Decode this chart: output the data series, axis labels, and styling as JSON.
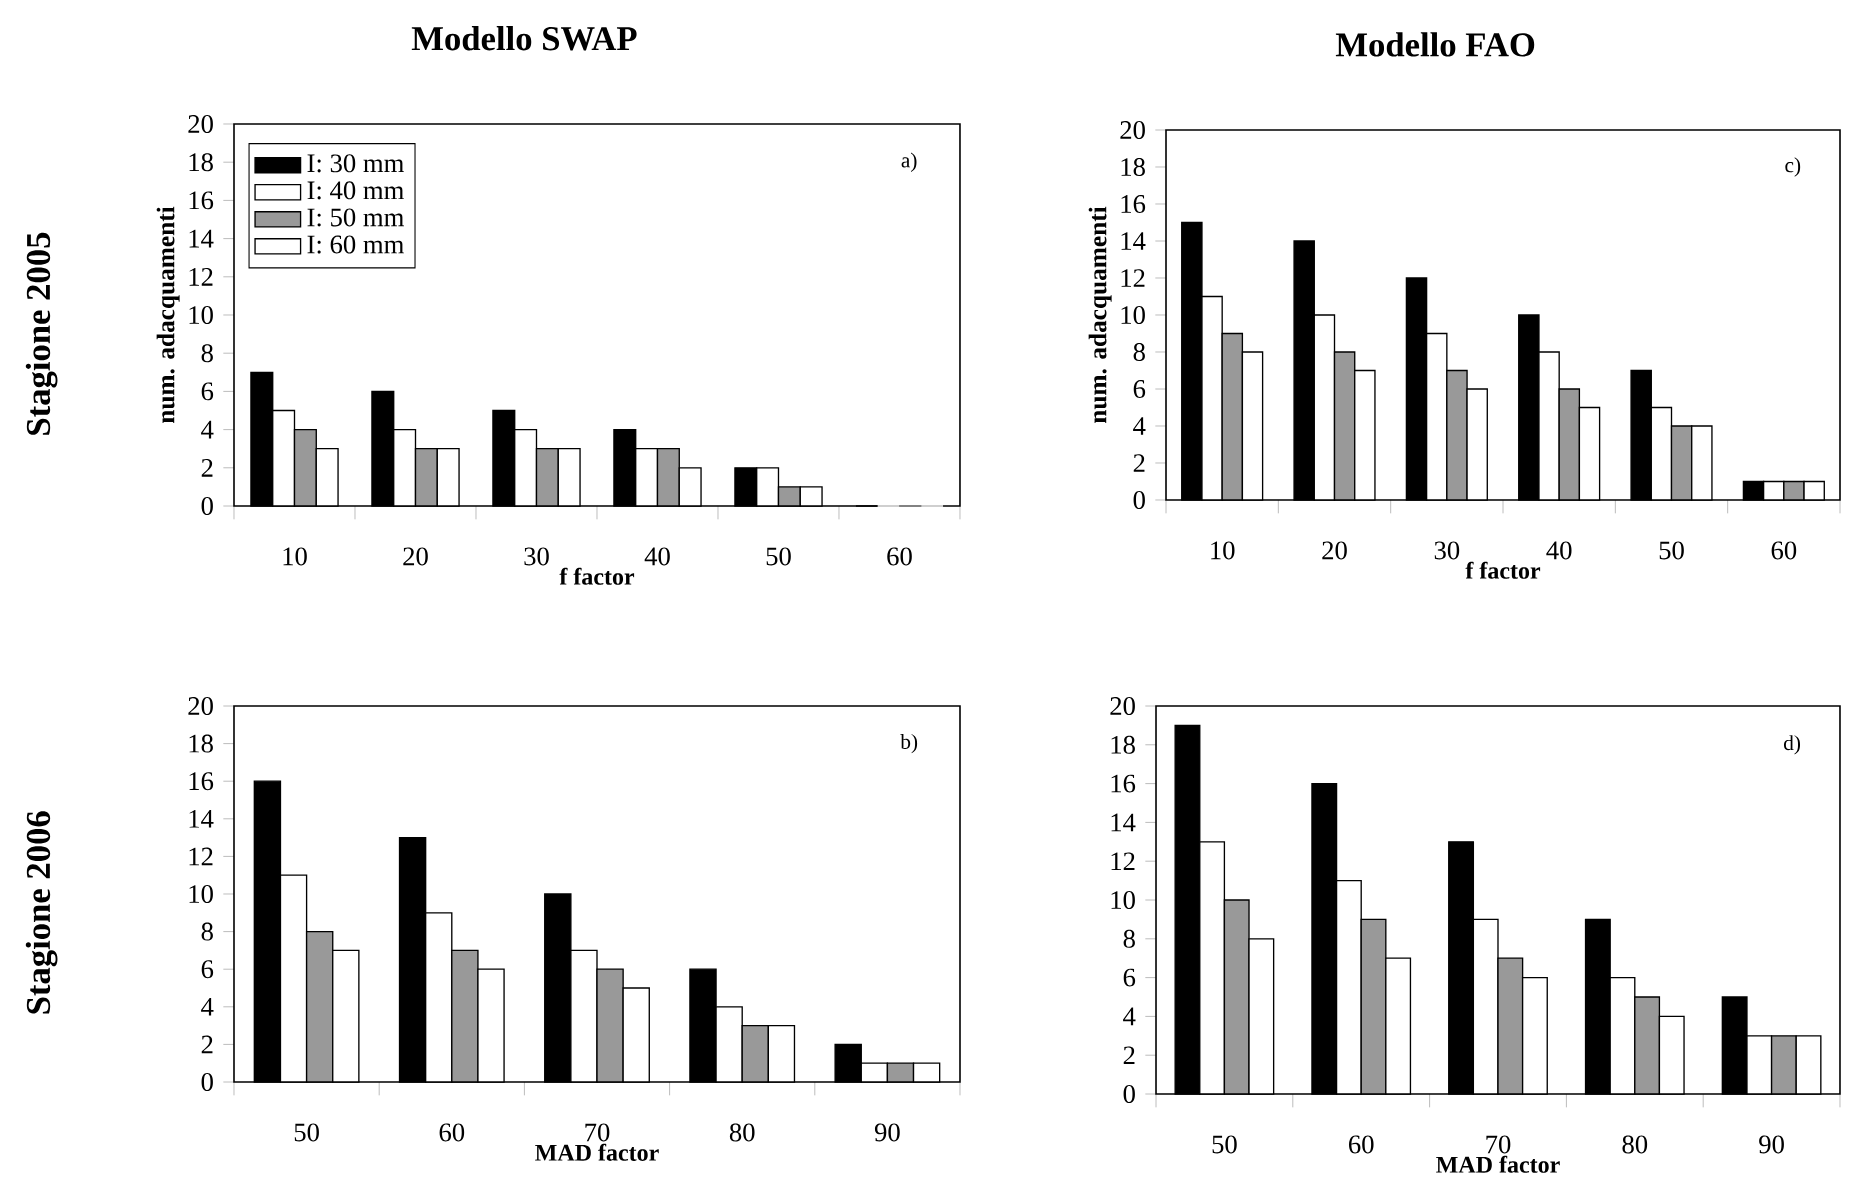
{
  "chart_data": [
    {
      "type": "bar",
      "title": "Modello SWAP",
      "xlabel": "f factor",
      "ylabel": "num. adacquamenti",
      "categories": [
        "10",
        "20",
        "30",
        "40",
        "50",
        "60"
      ],
      "series": [
        {
          "name": "I: 30 mm",
          "color": "#000000",
          "values": [
            7,
            6,
            5,
            4,
            2,
            0
          ]
        },
        {
          "name": "I: 40 mm",
          "color": "#ffffff",
          "values": [
            5,
            4,
            4,
            3,
            2,
            0
          ]
        },
        {
          "name": "I: 50 mm",
          "color": "#999999",
          "values": [
            4,
            3,
            3,
            3,
            1,
            0
          ]
        },
        {
          "name": "I: 60 mm",
          "color": "#ffffff",
          "values": [
            3,
            3,
            3,
            2,
            1,
            0
          ]
        }
      ],
      "ylim": [
        0,
        20
      ],
      "yticks": [
        0,
        2,
        4,
        6,
        8,
        10,
        12,
        14,
        16,
        18,
        20
      ],
      "legend": "top left",
      "annotations": [
        "a)",
        "Stagione 2005"
      ]
    },
    {
      "type": "bar",
      "title": "Modello FAO",
      "xlabel": "f factor",
      "ylabel": "num. adacquamenti",
      "categories": [
        "10",
        "20",
        "30",
        "40",
        "50",
        "60"
      ],
      "series": [
        {
          "color": "#000000",
          "values": [
            15,
            14,
            12,
            10,
            7,
            1
          ]
        },
        {
          "color": "#ffffff",
          "values": [
            11,
            10,
            9,
            8,
            5,
            1
          ]
        },
        {
          "color": "#999999",
          "values": [
            9,
            8,
            7,
            6,
            4,
            1
          ]
        },
        {
          "color": "#ffffff",
          "values": [
            8,
            7,
            6,
            5,
            4,
            1
          ]
        }
      ],
      "ylim": [
        0,
        20
      ],
      "yticks": [
        0,
        2,
        4,
        6,
        8,
        10,
        12,
        14,
        16,
        18,
        20
      ],
      "annotations": [
        "c)"
      ]
    },
    {
      "type": "bar",
      "xlabel": "MAD factor",
      "categories": [
        "50",
        "60",
        "70",
        "80",
        "90"
      ],
      "series": [
        {
          "color": "#000000",
          "values": [
            16,
            13,
            10,
            6,
            2
          ]
        },
        {
          "color": "#ffffff",
          "values": [
            11,
            9,
            7,
            4,
            1
          ]
        },
        {
          "color": "#999999",
          "values": [
            8,
            7,
            6,
            3,
            1
          ]
        },
        {
          "color": "#ffffff",
          "values": [
            7,
            6,
            5,
            3,
            1
          ]
        }
      ],
      "ylim": [
        0,
        20
      ],
      "yticks": [
        0,
        2,
        4,
        6,
        8,
        10,
        12,
        14,
        16,
        18,
        20
      ],
      "annotations": [
        "b)",
        "Stagione 2006"
      ]
    },
    {
      "type": "bar",
      "xlabel": "MAD factor",
      "categories": [
        "50",
        "60",
        "70",
        "80",
        "90"
      ],
      "series": [
        {
          "color": "#000000",
          "values": [
            19,
            16,
            13,
            9,
            5
          ]
        },
        {
          "color": "#ffffff",
          "values": [
            13,
            11,
            9,
            6,
            3
          ]
        },
        {
          "color": "#999999",
          "values": [
            10,
            9,
            7,
            5,
            3
          ]
        },
        {
          "color": "#ffffff",
          "values": [
            8,
            7,
            6,
            4,
            3
          ]
        }
      ],
      "ylim": [
        0,
        20
      ],
      "yticks": [
        0,
        2,
        4,
        6,
        8,
        10,
        12,
        14,
        16,
        18,
        20
      ],
      "annotations": [
        "d)"
      ]
    }
  ]
}
